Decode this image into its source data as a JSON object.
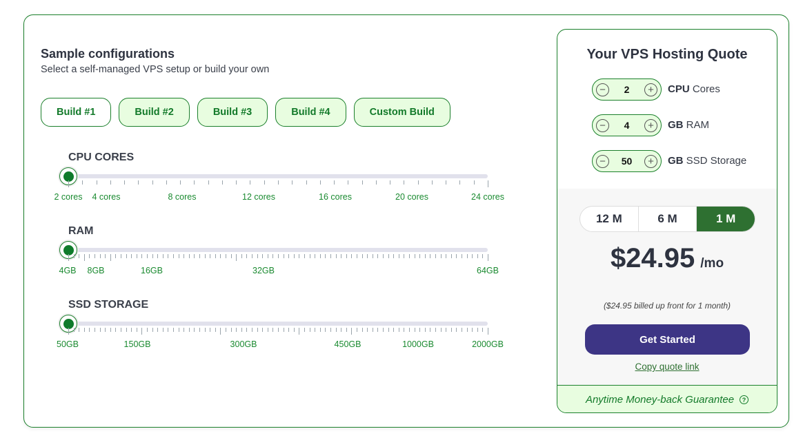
{
  "config": {
    "title": "Sample configurations",
    "subtitle": "Select a self-managed VPS setup or build your own",
    "builds": [
      {
        "label": "Build #1",
        "selected": true
      },
      {
        "label": "Build #2"
      },
      {
        "label": "Build #3"
      },
      {
        "label": "Build #4"
      },
      {
        "label": "Custom Build"
      }
    ]
  },
  "sliders": [
    {
      "label": "CPU CORES",
      "value": "2 cores",
      "ticks": [
        "2 cores",
        "4 cores",
        "8 cores",
        "12 cores",
        "16 cores",
        "20 cores",
        "24 cores"
      ]
    },
    {
      "label": "RAM",
      "value": "4GB",
      "ticks": [
        "4GB",
        "8GB",
        "16GB",
        "32GB",
        "64GB"
      ]
    },
    {
      "label": "SSD STORAGE",
      "value": "50GB",
      "ticks": [
        "50GB",
        "150GB",
        "300GB",
        "450GB",
        "1000GB",
        "2000GB"
      ]
    }
  ],
  "quote": {
    "title": "Your VPS Hosting Quote",
    "steppers": [
      {
        "value": "2",
        "unit": "CPU",
        "label": "Cores"
      },
      {
        "value": "4",
        "unit": "GB",
        "label": "RAM"
      },
      {
        "value": "50",
        "unit": "GB",
        "label": "SSD Storage"
      }
    ],
    "terms": [
      "12 M",
      "6 M",
      "1 M"
    ],
    "selected_term": "1 M",
    "price": "$24.95",
    "per": "/mo",
    "billed": "($24.95 billed up front for 1 month)",
    "cta": "Get Started",
    "copy_link": "Copy quote link",
    "guarantee": "Anytime Money-back Guarantee"
  },
  "colors": {
    "accent": "#1a7f2a",
    "button": "#3d3585",
    "selected_term": "#2e7031",
    "light_green": "#e8fde0"
  }
}
